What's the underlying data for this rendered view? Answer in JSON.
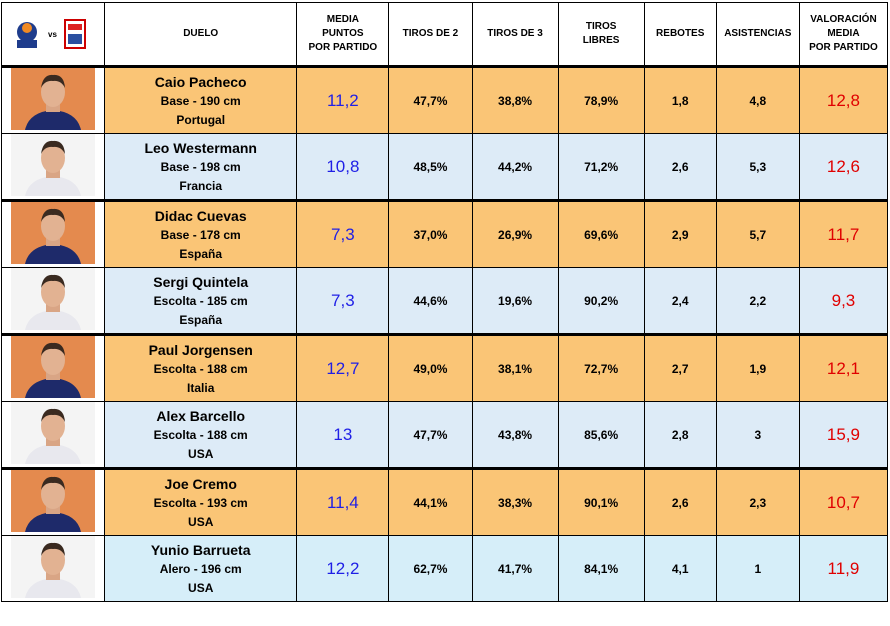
{
  "header": {
    "vs": "vs",
    "columns": [
      [
        "DUELO"
      ],
      [
        "MEDIA",
        "PUNTOS",
        "POR PARTIDO"
      ],
      [
        "TIROS DE 2"
      ],
      [
        "TIROS DE 3"
      ],
      [
        "TIROS",
        "LIBRES"
      ],
      [
        "REBOTES"
      ],
      [
        "ASISTENCIAS"
      ],
      [
        "VALORACIÓN",
        "MEDIA",
        "POR PARTIDO"
      ]
    ]
  },
  "table": {
    "rows": [
      [
        "Caio Pacheco",
        "Base - 190 cm",
        "Portugal",
        "11,2",
        "47,7%",
        "38,8%",
        "78,9%",
        "1,8",
        "4,8",
        "12,8"
      ],
      [
        "Leo Westermann",
        "Base - 198 cm",
        "Francia",
        "10,8",
        "48,5%",
        "44,2%",
        "71,2%",
        "2,6",
        "5,3",
        "12,6"
      ],
      [
        "Didac Cuevas",
        "Base - 178 cm",
        "España",
        "7,3",
        "37,0%",
        "26,9%",
        "69,6%",
        "2,9",
        "5,7",
        "11,7"
      ],
      [
        "Sergi Quintela",
        "Escolta - 185 cm",
        "España",
        "7,3",
        "44,6%",
        "19,6%",
        "90,2%",
        "2,4",
        "2,2",
        "9,3"
      ],
      [
        "Paul Jorgensen",
        "Escolta - 188 cm",
        "Italia",
        "12,7",
        "49,0%",
        "38,1%",
        "72,7%",
        "2,7",
        "1,9",
        "12,1"
      ],
      [
        "Alex Barcello",
        "Escolta - 188 cm",
        "USA",
        "13",
        "47,7%",
        "43,8%",
        "85,6%",
        "2,8",
        "3",
        "15,9"
      ],
      [
        "Joe Cremo",
        "Escolta - 193 cm",
        "USA",
        "11,4",
        "44,1%",
        "38,3%",
        "90,1%",
        "2,6",
        "2,3",
        "10,7"
      ],
      [
        "Yunio Barrueta",
        "Alero - 196 cm",
        "USA",
        "12,2",
        "62,7%",
        "41,7%",
        "84,1%",
        "4,1",
        "1",
        "11,9"
      ]
    ]
  }
}
